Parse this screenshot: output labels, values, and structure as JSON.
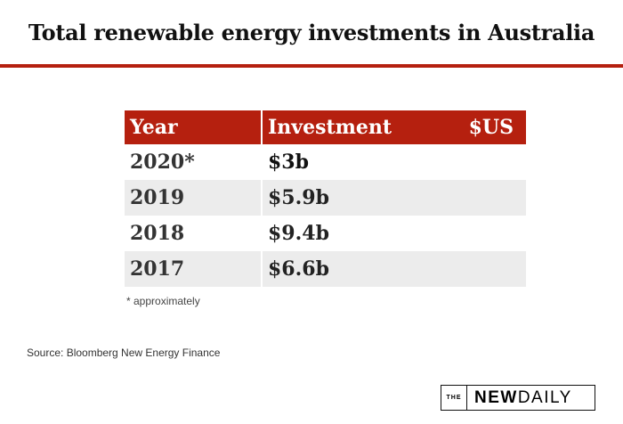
{
  "title": "Total renewable energy investments in Australia",
  "table": {
    "headers": {
      "year": "Year",
      "investment": "Investment",
      "currency": "$US"
    },
    "rows": [
      {
        "year": "2020*",
        "investment": "$3b"
      },
      {
        "year": "2019",
        "investment": "$5.9b"
      },
      {
        "year": "2018",
        "investment": "$9.4b"
      },
      {
        "year": "2017",
        "investment": "$6.6b"
      }
    ]
  },
  "footnote": "* approximately",
  "source": "Source: Bloomberg New Energy Finance",
  "logo": {
    "the": "THE",
    "new": "NEW",
    "daily": "DAILY"
  },
  "colors": {
    "accent": "#b5200f",
    "alt_row": "#ececec"
  }
}
